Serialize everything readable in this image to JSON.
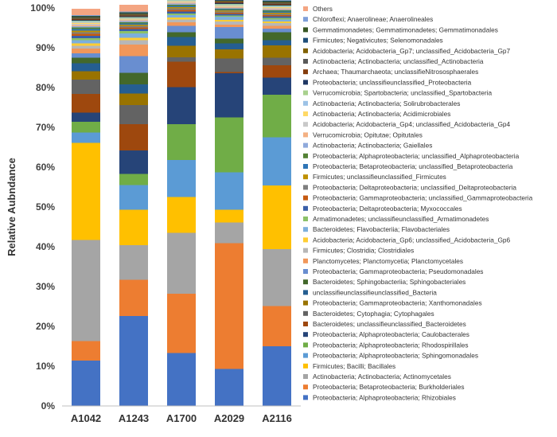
{
  "chart_data": {
    "type": "bar",
    "stacked": true,
    "ylabel": "Relative Aubndance",
    "xlabel": "",
    "ylim": [
      0,
      100
    ],
    "yticks": [
      "0%",
      "10%",
      "20%",
      "30%",
      "40%",
      "50%",
      "60%",
      "70%",
      "80%",
      "90%",
      "100%"
    ],
    "grid": false,
    "legend_position": "right",
    "categories": [
      "A1042",
      "A1243",
      "A1700",
      "A2029",
      "A2116"
    ],
    "series": [
      {
        "name": "Proteobacteria; Alphaproteobacteria; Rhizobiales",
        "color": "#4472C4",
        "values": [
          11.4,
          22.6,
          13.3,
          9.3,
          15.0
        ]
      },
      {
        "name": "Proteobacteria; Betaproteobacteria; Burkholderiales",
        "color": "#ED7D31",
        "values": [
          4.9,
          9.1,
          14.9,
          31.6,
          10.1
        ]
      },
      {
        "name": "Actinobacteria; Actinobacteria; Actinomycetales",
        "color": "#A5A5A5",
        "values": [
          25.4,
          8.7,
          15.3,
          5.2,
          14.3
        ]
      },
      {
        "name": "Firmicutes; Bacilli; Bacillales",
        "color": "#FFC000",
        "values": [
          24.4,
          8.9,
          9.0,
          3.2,
          16.0
        ]
      },
      {
        "name": "Proteobacteria; Alphaproteobacteria; Sphingomonadales",
        "color": "#5B9BD5",
        "values": [
          2.6,
          6.2,
          9.3,
          9.4,
          12.1
        ]
      },
      {
        "name": "Proteobacteria; Alphaproteobacteria; Rhodospirillales",
        "color": "#70AD47",
        "values": [
          2.7,
          2.8,
          9.0,
          13.8,
          10.7
        ]
      },
      {
        "name": "Proteobacteria; Alphaproteobacteria; Caulobacterales",
        "color": "#264478",
        "values": [
          2.3,
          5.9,
          9.3,
          11.1,
          4.3
        ]
      },
      {
        "name": "Bacteroidetes; unclassifieunclassified_Bacteroidetes",
        "color": "#9E480E",
        "values": [
          4.7,
          6.6,
          6.4,
          0.3,
          3.1
        ]
      },
      {
        "name": "Bacteroidetes; Cytophagia; Cytophagales",
        "color": "#636363",
        "values": [
          3.6,
          4.8,
          1.1,
          3.4,
          1.9
        ]
      },
      {
        "name": "Proteobacteria; Gammaproteobacteria; Xanthomonadales",
        "color": "#997300",
        "values": [
          2.1,
          2.9,
          2.9,
          2.3,
          3.1
        ]
      },
      {
        "name": "unclassifieunclassifieunclassified_Bacteria",
        "color": "#255E91",
        "values": [
          2.0,
          2.3,
          2.2,
          1.5,
          1.3
        ]
      },
      {
        "name": "Bacteroidetes; Sphingobacteriia; Sphingobacteriales",
        "color": "#43682B",
        "values": [
          1.4,
          2.9,
          1.2,
          1.2,
          2.0
        ]
      },
      {
        "name": "Proteobacteria; Gammaproteobacteria; Pseudomonadales",
        "color": "#698ED0",
        "values": [
          1.1,
          4.2,
          1.6,
          2.9,
          0.9
        ]
      },
      {
        "name": "Planctomycetes; Planctomycetia; Planctomycetales",
        "color": "#F1975A",
        "values": [
          1.2,
          2.9,
          0.9,
          0.6,
          0.7
        ]
      },
      {
        "name": "Firmicutes; Clostridia; Clostridiales",
        "color": "#B7B7B7",
        "values": [
          0.7,
          1.1,
          0.7,
          0.8,
          0.7
        ]
      },
      {
        "name": "Acidobacteria; Acidobacteria_Gp6; unclassified_Acidobacteria_Gp6",
        "color": "#FFCD33",
        "values": [
          0.6,
          0.6,
          0.5,
          0.4,
          0.4
        ]
      },
      {
        "name": "Bacteroidetes; Flavobacteriia; Flavobacteriales",
        "color": "#7CAFDD",
        "values": [
          0.8,
          1.1,
          0.6,
          0.8,
          0.5
        ]
      },
      {
        "name": "Armatimonadetes; unclassifieunclassified_Armatimonadetes",
        "color": "#8CC168",
        "values": [
          0.5,
          0.6,
          0.4,
          0.3,
          0.4
        ]
      },
      {
        "name": "Proteobacteria; Deltaproteobacteria; Myxococcales",
        "color": "#3A5FA8",
        "values": [
          0.6,
          0.5,
          0.5,
          0.4,
          0.4
        ]
      },
      {
        "name": "Proteobacteria; Gammaproteobacteria; unclassified_Gammaproteobacteria",
        "color": "#C55A11",
        "values": [
          0.5,
          0.4,
          0.4,
          0.3,
          0.3
        ]
      },
      {
        "name": "Proteobacteria; Deltaproteobacteria; unclassified_Deltaproteobacteria",
        "color": "#7F7F7F",
        "values": [
          0.4,
          0.4,
          0.4,
          0.3,
          0.3
        ]
      },
      {
        "name": "Firmicutes; unclassifieunclassified_Firmicutes",
        "color": "#BF9000",
        "values": [
          0.4,
          0.3,
          0.3,
          0.3,
          0.3
        ]
      },
      {
        "name": "Proteobacteria; Betaproteobacteria; unclassified_Betaproteobacteria",
        "color": "#2E75B6",
        "values": [
          0.4,
          0.3,
          0.3,
          0.2,
          0.3
        ]
      },
      {
        "name": "Proteobacteria; Alphaproteobacteria; unclassified_Alphaproteobacteria",
        "color": "#548235",
        "values": [
          0.4,
          0.3,
          0.3,
          0.2,
          0.3
        ]
      },
      {
        "name": "Actinobacteria; Actinobacteria; Gaiellales",
        "color": "#8FAADC",
        "values": [
          0.3,
          0.3,
          0.3,
          0.2,
          0.2
        ]
      },
      {
        "name": "Verrucomicrobia; Opitutae; Opitutales",
        "color": "#F4B183",
        "values": [
          0.3,
          0.2,
          0.2,
          0.2,
          0.2
        ]
      },
      {
        "name": "Acidobacteria; Acidobacteria_Gp4; unclassified_Acidobacteria_Gp4",
        "color": "#C9C9C9",
        "values": [
          0.3,
          0.2,
          0.2,
          0.2,
          0.2
        ]
      },
      {
        "name": "Actinobacteria; Actinobacteria; Acidimicrobiales",
        "color": "#FFD966",
        "values": [
          0.3,
          0.2,
          0.2,
          0.2,
          0.2
        ]
      },
      {
        "name": "Actinobacteria; Actinobacteria; Solirubrobacterales",
        "color": "#9DC3E6",
        "values": [
          0.3,
          0.2,
          0.2,
          0.2,
          0.2
        ]
      },
      {
        "name": "Verrucomicrobia; Spartobacteria; unclassified_Spartobacteria",
        "color": "#A9D18E",
        "values": [
          0.2,
          0.2,
          0.2,
          0.2,
          0.2
        ]
      },
      {
        "name": "Proteobacteria; unclassifieunclassified_Proteobacteria",
        "color": "#203864",
        "values": [
          0.2,
          0.2,
          0.2,
          0.2,
          0.2
        ]
      },
      {
        "name": "Archaea; Thaumarchaeota; unclassifieNitrososphaerales",
        "color": "#843C0C",
        "values": [
          0.2,
          0.2,
          0.2,
          0.2,
          0.2
        ]
      },
      {
        "name": "Actinobacteria; Actinobacteria; unclassified_Actinobacteria",
        "color": "#595959",
        "values": [
          0.2,
          0.2,
          0.2,
          0.2,
          0.2
        ]
      },
      {
        "name": "Acidobacteria; Acidobacteria_Gp7; unclassified_Acidobacteria_Gp7",
        "color": "#806000",
        "values": [
          0.2,
          0.2,
          0.2,
          0.2,
          0.2
        ]
      },
      {
        "name": "Firmicutes; Negativicutes; Selenomonadales",
        "color": "#1F4E79",
        "values": [
          0.2,
          0.2,
          0.2,
          0.2,
          0.2
        ]
      },
      {
        "name": "Gemmatimonadetes; Gemmatimonadetes; Gemmatimonadales",
        "color": "#375623",
        "values": [
          0.2,
          0.2,
          0.2,
          0.2,
          0.2
        ]
      },
      {
        "name": "Chloroflexi; Anaerolineae; Anaerolineales",
        "color": "#7F9FD9",
        "values": [
          0.2,
          0.2,
          0.2,
          0.2,
          0.2
        ]
      },
      {
        "name": "Others",
        "color": "#F4A582",
        "values": [
          1.6,
          1.7,
          1.5,
          1.4,
          1.4
        ]
      }
    ]
  }
}
